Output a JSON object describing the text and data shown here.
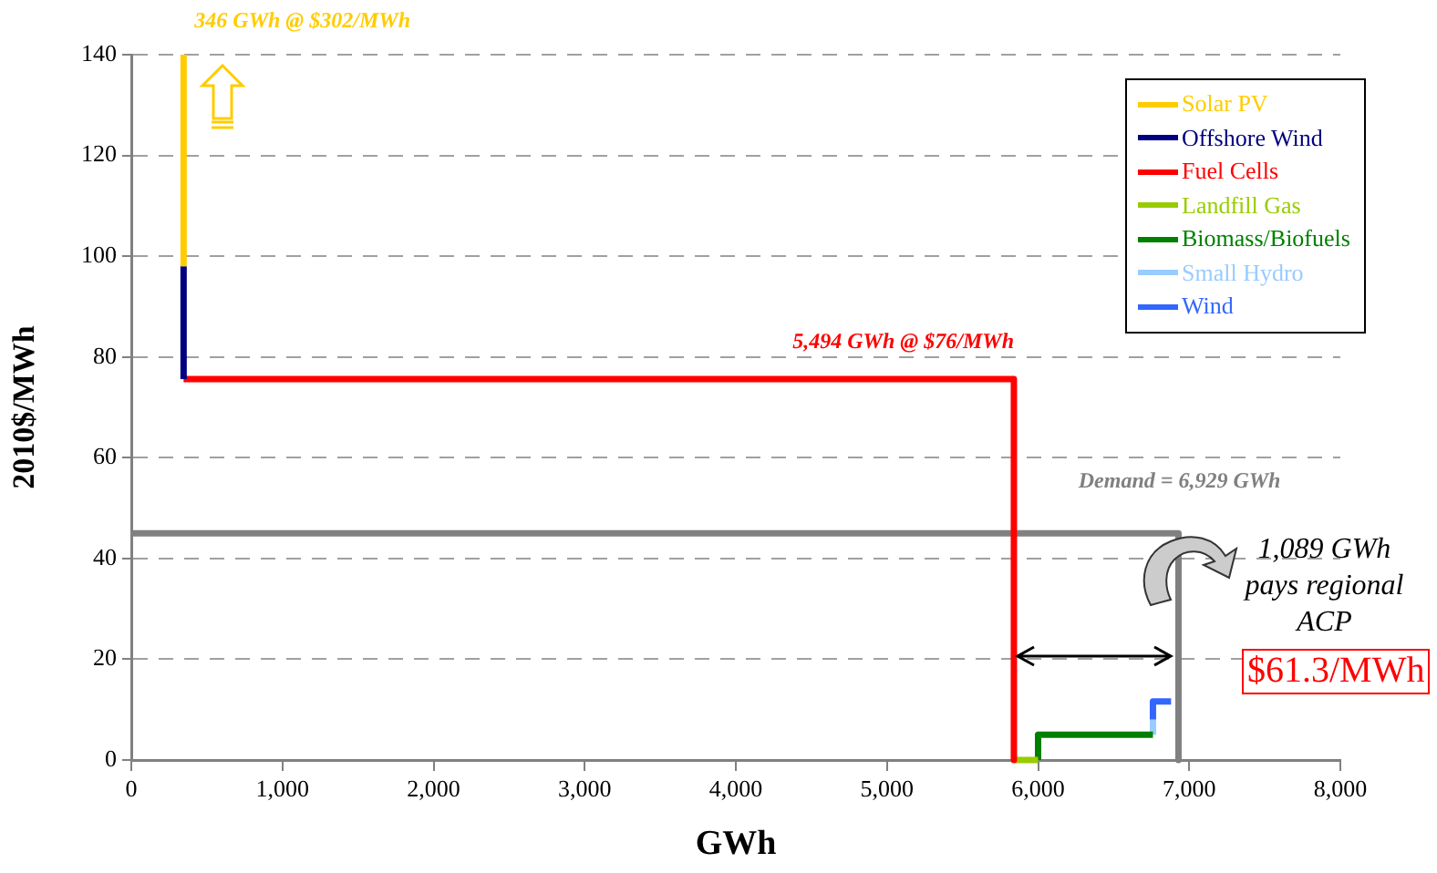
{
  "chart_data": {
    "type": "line",
    "xlabel": "GWh",
    "ylabel": "2010$/MWh",
    "xlim": [
      0,
      8000
    ],
    "xticks": [
      0,
      {
        "value": 1000,
        "label": "1,000"
      },
      {
        "value": 2000,
        "label": "2,000"
      },
      {
        "value": 3000,
        "label": "3,000"
      },
      {
        "value": 4000,
        "label": "4,000"
      },
      {
        "value": 5000,
        "label": "5,000"
      },
      {
        "value": 6000,
        "label": "6,000"
      },
      {
        "value": 7000,
        "label": "7,000"
      },
      {
        "value": 8000,
        "label": "8,000"
      }
    ],
    "ylim": [
      0,
      140
    ],
    "yticks": [
      0,
      20,
      40,
      60,
      80,
      100,
      120,
      140
    ],
    "grid": "y",
    "legend": "top right",
    "marker": "none",
    "line_style": "solid",
    "series": [
      {
        "name": "Solar PV",
        "color": "#ffcc00",
        "x": [
          346,
          346
        ],
        "values": [
          98,
          140
        ]
      },
      {
        "name": "Offshore Wind",
        "color": "#000080",
        "x": [
          346,
          346
        ],
        "values": [
          75.6,
          98
        ]
      },
      {
        "name": "Fuel Cells",
        "color": "#ff0000",
        "x": [
          346,
          5840,
          5840
        ],
        "values": [
          75.6,
          75.6,
          0
        ]
      },
      {
        "name": "Landfill Gas",
        "color": "#99cc00",
        "x": [
          5840,
          6000
        ],
        "values": [
          0,
          0
        ]
      },
      {
        "name": "Biomass/Biofuels",
        "color": "#008000",
        "x": [
          6000,
          6000,
          6760
        ],
        "values": [
          0,
          5,
          5
        ]
      },
      {
        "name": "Small Hydro",
        "color": "#99ccff",
        "x": [
          6760,
          6760
        ],
        "values": [
          5,
          8
        ]
      },
      {
        "name": "Wind",
        "color": "#3366ff",
        "x": [
          6760,
          6760,
          6880
        ],
        "values": [
          8,
          11.6,
          11.6
        ]
      },
      {
        "color": "#808080",
        "x": [
          0,
          6929,
          6929
        ],
        "values": [
          45,
          45,
          0
        ]
      }
    ],
    "annotations": [
      {
        "text": "346 GWh @ $302/MWh",
        "x": 346,
        "y": 140
      },
      {
        "text": "5,494 GWh @ $76/MWh",
        "x": 5840,
        "y": 75.6
      },
      {
        "text": "Demand = 6,929 GWh",
        "x": 6929,
        "y": 45
      },
      {
        "text": "1,089 GWh pays regional ACP",
        "x": 6929,
        "y": 20
      },
      "$61.3/MWh"
    ]
  }
}
